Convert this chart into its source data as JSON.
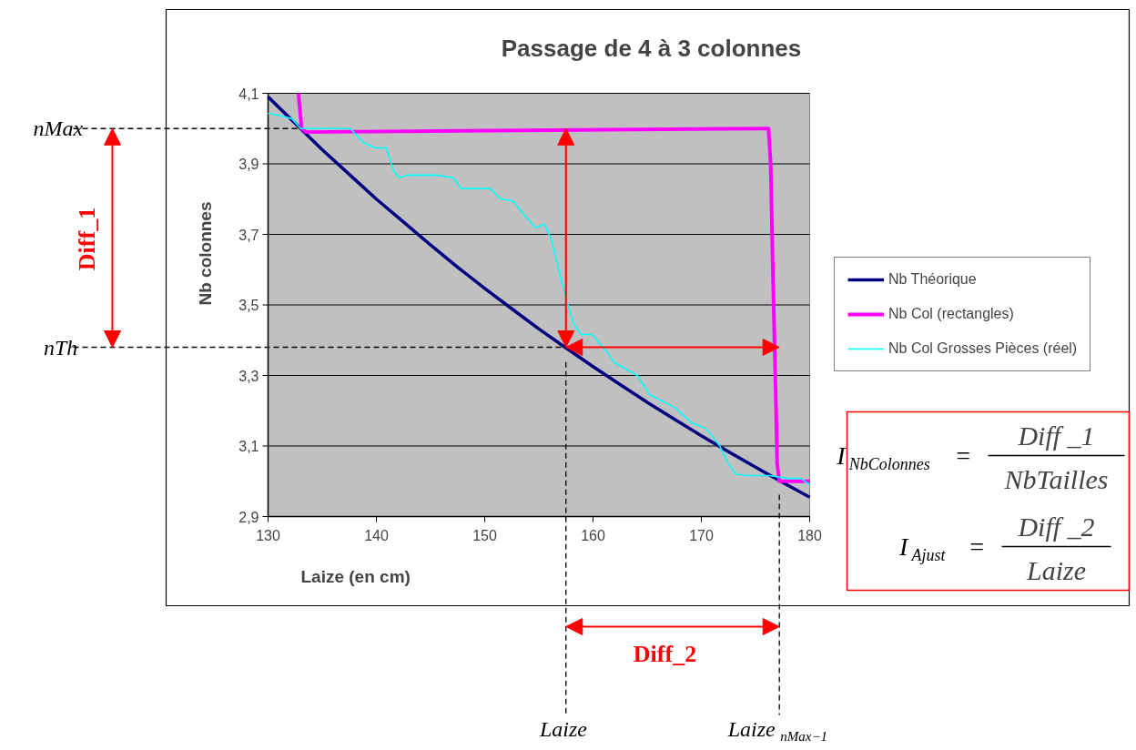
{
  "chart_data": {
    "type": "line",
    "title": "Passage de 4 à 3 colonnes",
    "xlabel": "Laize (en cm)",
    "ylabel": "Nb colonnes",
    "xlim": [
      130,
      180
    ],
    "ylim": [
      2.9,
      4.1
    ],
    "xticks": [
      130,
      140,
      150,
      160,
      170,
      180
    ],
    "yticks": [
      {
        "value": 2.9,
        "label": "2,9"
      },
      {
        "value": 3.1,
        "label": "3,1"
      },
      {
        "value": 3.3,
        "label": "3,3"
      },
      {
        "value": 3.5,
        "label": "3,5"
      },
      {
        "value": 3.7,
        "label": "3,7"
      },
      {
        "value": 3.9,
        "label": "3,9"
      },
      {
        "value": 4.1,
        "label": "4,1"
      }
    ],
    "grid": "y",
    "legend": "right",
    "series": [
      {
        "name": "Nb Théorique",
        "color": "#000080",
        "x": [
          130,
          132.5,
          135,
          137.5,
          140,
          142.5,
          145,
          147.5,
          150,
          152.5,
          155,
          157.5,
          160,
          162.5,
          165,
          167.5,
          170,
          172.5,
          175,
          177.5,
          180
        ],
        "values": [
          4.09,
          4.015,
          3.94,
          3.87,
          3.8,
          3.735,
          3.67,
          3.607,
          3.547,
          3.489,
          3.432,
          3.378,
          3.325,
          3.274,
          3.224,
          3.176,
          3.129,
          3.084,
          3.04,
          2.997,
          2.955
        ]
      },
      {
        "name": "Nb Col (rectangles)",
        "color": "#ff00ff",
        "x": [
          132.8,
          133.1,
          133.5,
          175.8,
          176.2,
          176.4,
          176.6,
          176.9,
          177.0,
          177.2,
          180
        ],
        "values": [
          4.1,
          4.0,
          3.99,
          4.0,
          4.0,
          3.9,
          3.6,
          3.2,
          3.05,
          3.0,
          3.0
        ]
      },
      {
        "name": "Nb Col Grosses Pièces (réel)",
        "color": "#00ffff",
        "x": [
          130,
          130.9,
          132.2,
          133.0,
          137.6,
          138.8,
          139.9,
          140.9,
          141.6,
          142.1,
          142.8,
          145.6,
          147.1,
          147.8,
          148.6,
          150.5,
          151.5,
          152.6,
          153.6,
          154.7,
          155.5,
          156.1,
          156.9,
          157.6,
          158.2,
          158.9,
          159.9,
          161.2,
          162,
          164.1,
          165.2,
          167.5,
          169.1,
          170.4,
          171.7,
          172.5,
          173.2,
          174.2,
          176.3,
          178,
          179.2,
          180
        ],
        "values": [
          4.043,
          4.038,
          4.028,
          4.0,
          4.0,
          3.96,
          3.945,
          3.945,
          3.88,
          3.86,
          3.868,
          3.868,
          3.86,
          3.83,
          3.83,
          3.83,
          3.8,
          3.795,
          3.757,
          3.718,
          3.73,
          3.69,
          3.59,
          3.51,
          3.447,
          3.416,
          3.416,
          3.37,
          3.336,
          3.3,
          3.246,
          3.21,
          3.166,
          3.15,
          3.1,
          3.05,
          3.02,
          3.016,
          3.016,
          3.008,
          3.008,
          2.99
        ]
      }
    ],
    "ref_lines": [
      {
        "axis": "y",
        "value": 4.0,
        "label": "nMax",
        "color": "#000000",
        "line_style": "dashed"
      },
      {
        "axis": "y",
        "value": 3.38,
        "label": "nTh",
        "color": "#000000",
        "line_style": "dashed"
      },
      {
        "axis": "x",
        "value": 157.5,
        "label": "Laize",
        "color": "#000000",
        "line_style": "dashed"
      },
      {
        "axis": "x",
        "value": 177.2,
        "label": "Laize$_{nMax−1}$",
        "color": "#000000",
        "line_style": "dashed"
      }
    ],
    "annotations": [
      "Diff_1",
      "Diff_2",
      "I$_{NbColonnes}$ =",
      "Diff _1",
      "NbTailles",
      "I$_{Ajust}$ =",
      "Diff _2",
      "Laize"
    ]
  }
}
